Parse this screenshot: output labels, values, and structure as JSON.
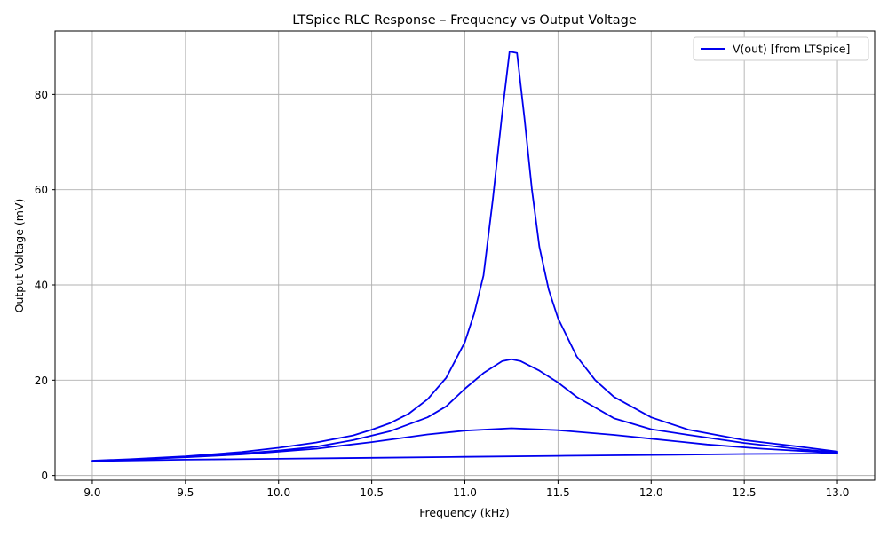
{
  "chart_data": {
    "type": "line",
    "title": "LTSpice RLC Response – Frequency vs Output Voltage",
    "xlabel": "Frequency (kHz)",
    "ylabel": "Output Voltage (mV)",
    "xlim": [
      8.8,
      13.2
    ],
    "ylim": [
      -1.0,
      93.3
    ],
    "xticks": [
      9.0,
      9.5,
      10.0,
      10.5,
      11.0,
      11.5,
      12.0,
      12.5,
      13.0
    ],
    "xtick_labels": [
      "9.0",
      "9.5",
      "10.0",
      "10.5",
      "11.0",
      "11.5",
      "12.0",
      "12.5",
      "13.0"
    ],
    "yticks": [
      0,
      20,
      40,
      60,
      80
    ],
    "ytick_labels": [
      "0",
      "20",
      "40",
      "60",
      "80"
    ],
    "grid": true,
    "legend_position": "upper-right",
    "colors": {
      "series": "#0000ee",
      "grid": "#b0b0b0"
    },
    "series": [
      {
        "name": "V(out) [from LTSpice]",
        "x": [
          9.0,
          9.2,
          9.5,
          9.8,
          10.0,
          10.2,
          10.4,
          10.5,
          10.6,
          10.7,
          10.8,
          10.9,
          11.0,
          11.05,
          11.1,
          11.15,
          11.2,
          11.24,
          11.28,
          11.32,
          11.36,
          11.4,
          11.45,
          11.5,
          11.6,
          11.7,
          11.8,
          12.0,
          12.2,
          12.5,
          12.8,
          13.0,
          13.0,
          12.8,
          12.5,
          12.2,
          12.0,
          11.8,
          11.6,
          11.5,
          11.4,
          11.3,
          11.25,
          11.2,
          11.1,
          11.0,
          10.9,
          10.8,
          10.6,
          10.4,
          10.2,
          10.0,
          9.8,
          9.5,
          9.2,
          9.0,
          9.0,
          9.2,
          9.5,
          9.8,
          10.0,
          10.2,
          10.5,
          10.8,
          11.0,
          11.25,
          11.5,
          11.8,
          12.0,
          12.3,
          12.6,
          13.0,
          13.0,
          12.5,
          12.0,
          11.5,
          11.0,
          10.5,
          10.0,
          9.5,
          9.0
        ],
        "values": [
          3.1,
          3.4,
          4.0,
          4.9,
          5.8,
          6.9,
          8.4,
          9.6,
          11.0,
          13.0,
          16.0,
          20.5,
          28.0,
          34.0,
          42.0,
          58.0,
          76.0,
          89.0,
          88.7,
          75.0,
          60.0,
          48.0,
          39.0,
          33.0,
          25.0,
          20.0,
          16.5,
          12.2,
          9.6,
          7.4,
          6.0,
          5.0,
          4.8,
          5.5,
          6.8,
          8.5,
          9.7,
          12.0,
          16.5,
          19.5,
          22.0,
          24.0,
          24.4,
          24.0,
          21.5,
          18.2,
          14.5,
          12.2,
          9.3,
          7.4,
          6.0,
          5.2,
          4.6,
          3.9,
          3.4,
          3.1,
          3.0,
          3.3,
          3.8,
          4.4,
          5.0,
          5.6,
          7.0,
          8.6,
          9.4,
          9.9,
          9.5,
          8.5,
          7.7,
          6.5,
          5.6,
          4.7,
          4.6,
          4.5,
          4.3,
          4.1,
          3.9,
          3.7,
          3.5,
          3.3,
          3.0
        ]
      }
    ]
  }
}
